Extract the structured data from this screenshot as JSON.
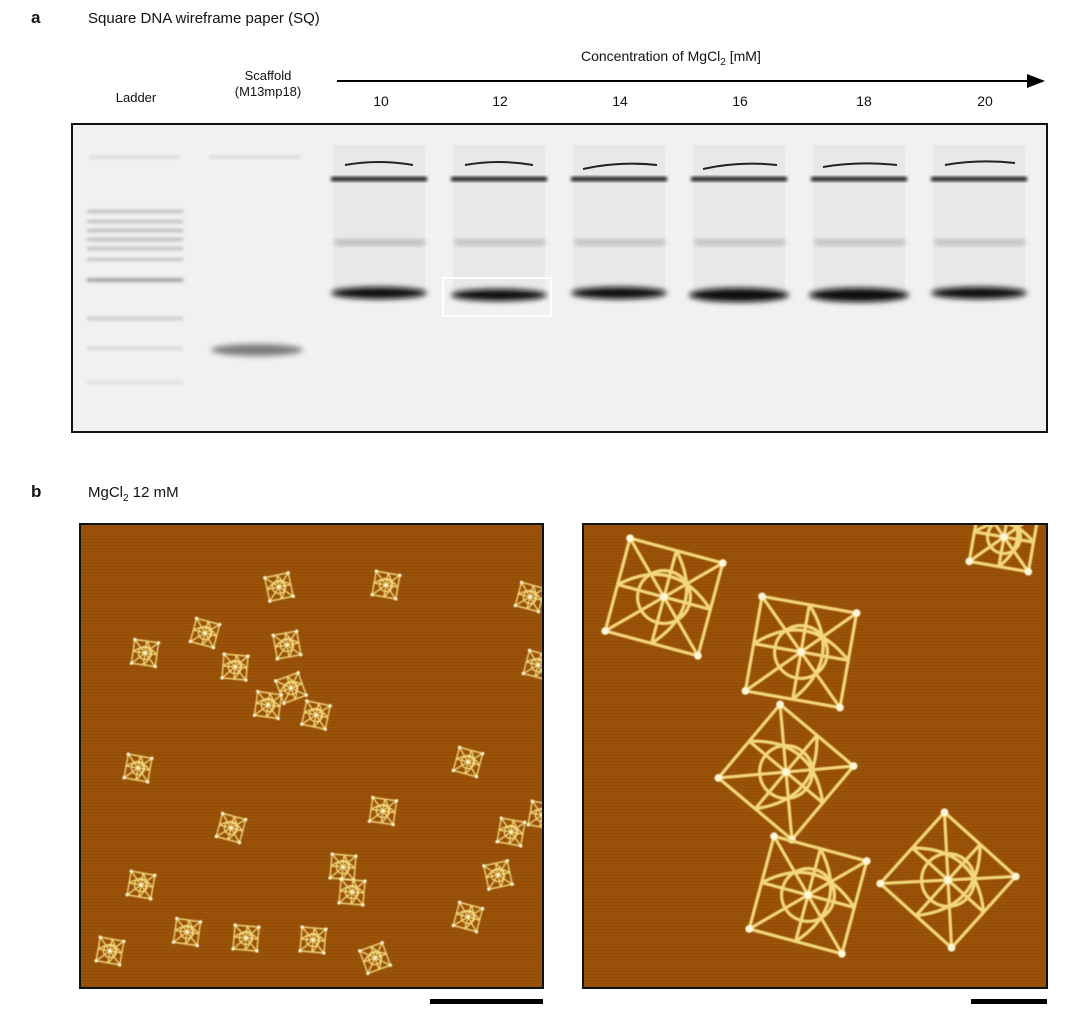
{
  "panel_a": {
    "letter": "a",
    "title": "Square DNA wireframe paper (SQ)",
    "ladder_label": "Ladder",
    "scaffold_label_line1": "Scaffold",
    "scaffold_label_line2": "(M13mp18)",
    "arrow_label_main": "Concentration of MgCl",
    "arrow_label_sub": "2",
    "arrow_label_unit": " [mM]",
    "concentrations": [
      "10",
      "12",
      "14",
      "16",
      "18",
      "20"
    ],
    "highlighted_lane": "12"
  },
  "panel_b": {
    "letter": "b",
    "title_main": "MgCl",
    "title_sub": "2",
    "title_rest": " 12 mM",
    "colors": {
      "afm_background": "#9a5208",
      "afm_structure": "#f3d77a"
    }
  }
}
